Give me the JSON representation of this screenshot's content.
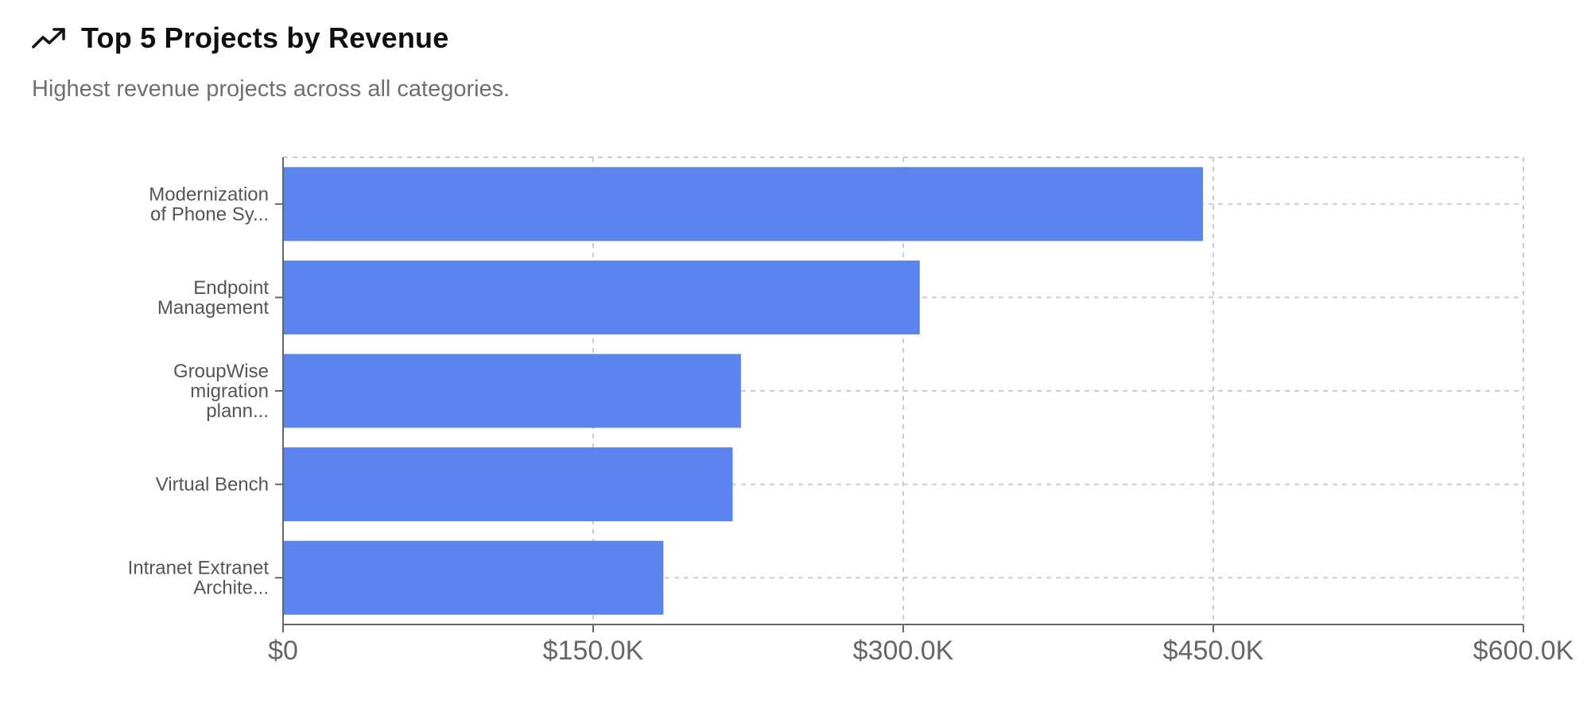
{
  "header": {
    "icon": "trending-up-icon",
    "title": "Top 5 Projects by Revenue",
    "subtitle": "Highest revenue projects across all categories."
  },
  "colors": {
    "bar": "#5b84ee",
    "grid": "#cccccc",
    "axis": "#666666"
  },
  "chart_data": {
    "type": "bar",
    "orientation": "horizontal",
    "categories": [
      [
        "Modernization",
        "of Phone Sy..."
      ],
      [
        "Endpoint",
        "Management"
      ],
      [
        "GroupWise",
        "migration",
        "plann..."
      ],
      [
        "Virtual Bench"
      ],
      [
        "Intranet Extranet",
        "Archite..."
      ]
    ],
    "values": [
      445000,
      308000,
      221500,
      217500,
      184000
    ],
    "x_ticks": [
      "$0",
      "$150.0K",
      "$300.0K",
      "$450.0K",
      "$600.0K"
    ],
    "xlim": [
      0,
      600000
    ],
    "grid": true
  }
}
